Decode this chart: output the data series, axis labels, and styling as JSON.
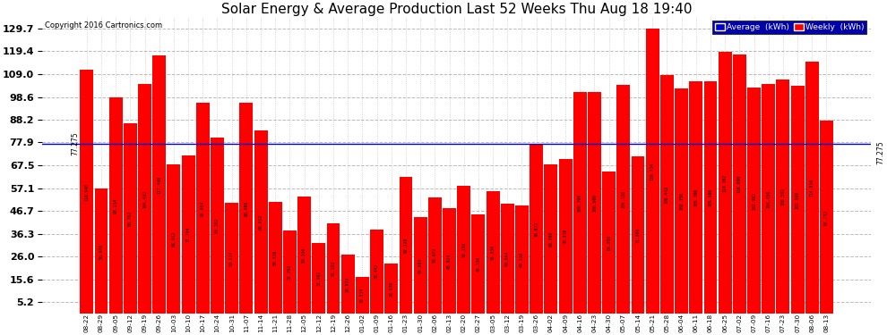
{
  "title": "Solar Energy & Average Production Last 52 Weeks Thu Aug 18 19:40",
  "copyright": "Copyright 2016 Cartronics.com",
  "average_line": 77.275,
  "yticks": [
    5.2,
    15.6,
    26.0,
    36.3,
    46.7,
    57.1,
    67.5,
    77.9,
    88.2,
    98.6,
    109.0,
    119.4,
    129.7
  ],
  "bar_color": "#FF0000",
  "average_line_color": "#0000CC",
  "bg_color": "#FFFFFF",
  "grid_color": "#BBBBBB",
  "values": [
    110.94,
    56.976,
    98.214,
    86.762,
    104.432,
    117.448,
    68.012,
    71.794,
    95.954,
    80.102,
    50.574,
    96.0,
    83.552,
    50.728,
    37.792,
    53.21,
    32.062,
    41.102,
    26.932,
    16.534,
    38.442,
    22.878,
    62.12,
    44.064,
    53.072,
    48.024,
    58.15,
    45.136,
    55.536,
    49.944,
    49.128,
    76.872,
    68.008,
    70.31,
    100.79,
    100.906,
    64.858,
    104.118,
    71.606,
    129.734,
    108.442,
    102.358,
    105.766,
    105.668,
    119.102,
    118.098,
    102.902,
    104.456,
    106.592,
    103.506,
    114.816,
    87.772
  ],
  "dates": [
    "08-22",
    "08-29",
    "09-05",
    "09-12",
    "09-19",
    "09-26",
    "10-03",
    "10-10",
    "10-17",
    "10-24",
    "10-31",
    "11-07",
    "11-14",
    "11-21",
    "11-28",
    "12-05",
    "12-12",
    "12-19",
    "12-26",
    "01-02",
    "01-09",
    "01-16",
    "01-23",
    "01-30",
    "02-06",
    "02-13",
    "02-20",
    "02-27",
    "03-05",
    "03-12",
    "03-19",
    "03-26",
    "04-02",
    "04-09",
    "04-16",
    "04-23",
    "04-30",
    "05-07",
    "05-14",
    "05-21",
    "05-28",
    "06-04",
    "06-11",
    "06-18",
    "06-25",
    "07-02",
    "07-09",
    "07-16",
    "07-23",
    "07-30",
    "08-06",
    "08-13"
  ]
}
